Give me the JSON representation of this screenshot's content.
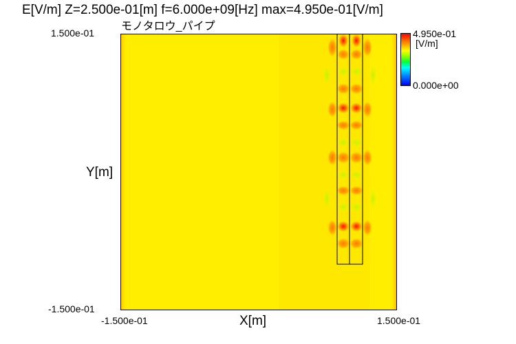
{
  "header": {
    "title": "E[V/m] Z=2.500e-01[m] f=6.000e+09[Hz] max=4.950e-01[V/m]",
    "subtitle": "モノタロウ_パイプ"
  },
  "axes": {
    "xlabel": "X[m]",
    "ylabel": "Y[m]",
    "x_min": "-1.500e-01",
    "x_max": "1.500e-01",
    "y_min": "-1.500e-01",
    "y_max": "1.500e-01"
  },
  "colorbar": {
    "max_label": "4.950e-01",
    "unit": "[V/m]",
    "min_label": "0.000e+00"
  },
  "colors": {
    "field_base": "#ffee00",
    "field_edge": "#ffc000",
    "hot": "#ff2000",
    "warm": "#ff8c00",
    "cool": "#b0f000"
  }
}
